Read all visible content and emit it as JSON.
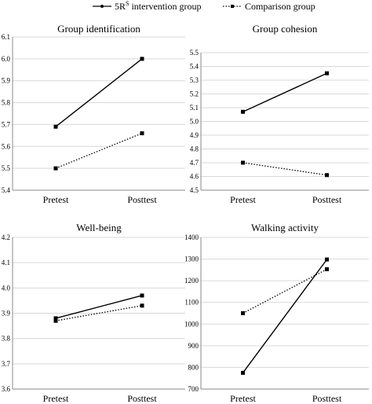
{
  "legend": {
    "series1_label": "5R",
    "series1_sup": "S",
    "series1_suffix": " intervention group",
    "series2_label": "Comparison group"
  },
  "colors": {
    "line": "#000000",
    "grid": "#d9d9d9"
  },
  "chart_data": [
    {
      "type": "line",
      "title": "Group identification",
      "categories": [
        "Pretest",
        "Posttest"
      ],
      "ylim": [
        5.4,
        6.1
      ],
      "yticks": [
        "5.4",
        "5.5",
        "5.6",
        "5.7",
        "5.8",
        "5.9",
        "6.0",
        "6.1"
      ],
      "series": [
        {
          "name": "5RS intervention group",
          "style": "solid",
          "values": [
            5.69,
            6.0
          ]
        },
        {
          "name": "Comparison group",
          "style": "dotted",
          "values": [
            5.5,
            5.66
          ]
        }
      ]
    },
    {
      "type": "line",
      "title": "Group cohesion",
      "categories": [
        "Pretest",
        "Posttest"
      ],
      "ylim": [
        4.5,
        5.5
      ],
      "yticks": [
        "4.5",
        "4.6",
        "4.7",
        "4.8",
        "4.9",
        "5.0",
        "5.1",
        "5.2",
        "5.3",
        "5.4",
        "5.5"
      ],
      "series": [
        {
          "name": "5RS intervention group",
          "style": "solid",
          "values": [
            5.07,
            5.35
          ]
        },
        {
          "name": "Comparison group",
          "style": "dotted",
          "values": [
            4.7,
            4.61
          ]
        }
      ]
    },
    {
      "type": "line",
      "title": "Well-being",
      "categories": [
        "Pretest",
        "Posttest"
      ],
      "ylim": [
        3.6,
        4.2
      ],
      "yticks": [
        "3.6",
        "3.7",
        "3.8",
        "3.9",
        "4.0",
        "4.1",
        "4.2"
      ],
      "series": [
        {
          "name": "5RS intervention group",
          "style": "solid",
          "values": [
            3.88,
            3.97
          ]
        },
        {
          "name": "Comparison group",
          "style": "dotted",
          "values": [
            3.87,
            3.93
          ]
        }
      ]
    },
    {
      "type": "line",
      "title": "Walking activity",
      "categories": [
        "Pretest",
        "Posttest"
      ],
      "ylim": [
        700,
        1400
      ],
      "yticks": [
        "700",
        "800",
        "900",
        "1000",
        "1100",
        "1200",
        "1300",
        "1400"
      ],
      "series": [
        {
          "name": "5RS intervention group",
          "style": "solid",
          "values": [
            775,
            1298
          ]
        },
        {
          "name": "Comparison group",
          "style": "dotted",
          "values": [
            1050,
            1253
          ]
        }
      ]
    }
  ]
}
